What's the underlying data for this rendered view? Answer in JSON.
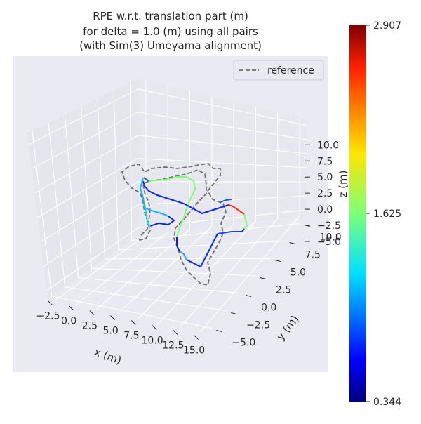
{
  "chart_data": {
    "type": "line3d",
    "title": [
      "RPE w.r.t. translation part (m)",
      "for delta = 1.0 (m) using all pairs",
      "(with Sim(3) Umeyama alignment)"
    ],
    "xlabel": "x (m)",
    "ylabel": "y (m)",
    "zlabel": "z (m)",
    "x_ticks": [
      "−2.5",
      "0.0",
      "2.5",
      "5.0",
      "7.5",
      "10.0",
      "12.5",
      "15.0"
    ],
    "y_ticks": [
      "−5.0",
      "−2.5",
      "0.0",
      "2.5",
      "5.0",
      "7.5",
      "10.0"
    ],
    "z_ticks": [
      "−5.0",
      "−2.5",
      "0.0",
      "2.5",
      "5.0",
      "7.5",
      "10.0"
    ],
    "legend": {
      "entries": [
        "reference"
      ],
      "position": "top-right"
    },
    "colorbar": {
      "min": 0.344,
      "max": 2.907,
      "ticks": [
        "2.907",
        "1.625",
        "0.344"
      ],
      "colormap": "jet"
    },
    "reference_color": "#6f6f6f",
    "pane_color": "#e6e7ef",
    "grid": true
  }
}
